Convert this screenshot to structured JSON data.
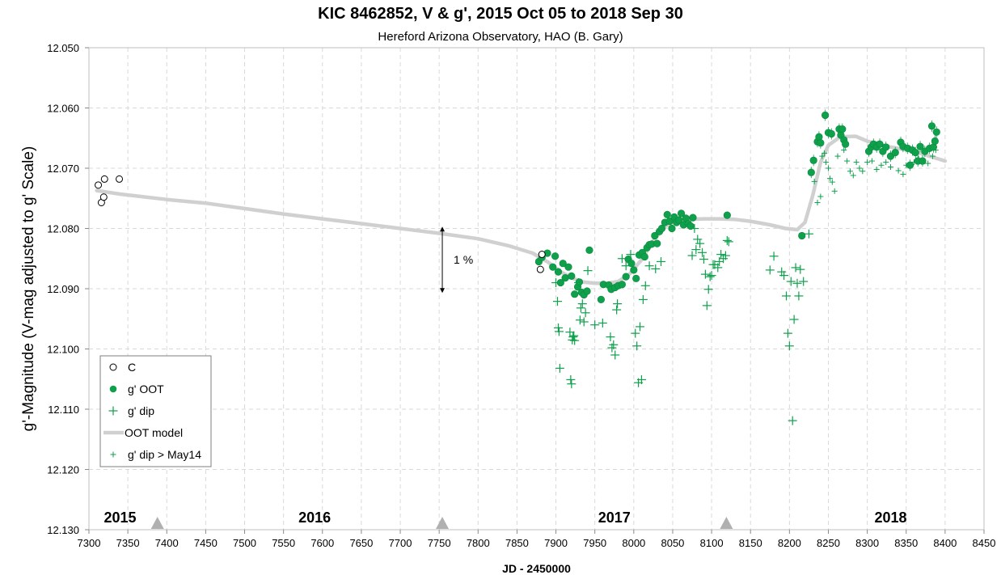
{
  "chart_data": {
    "type": "scatter",
    "title": "KIC 8462852, V & g', 2015 Oct 05 to 2018 Sep 30",
    "subtitle": "Hereford Arizona Observatory, HAO (B. Gary)",
    "xlabel": "JD - 2450000",
    "ylabel": "g'-Magnitude (V-mag adjusted to g' Scale)",
    "xlim": [
      7300,
      8450
    ],
    "ylim": [
      12.05,
      12.13
    ],
    "y_inverted": true,
    "grid": true,
    "x_ticks": [
      "7300",
      "7350",
      "7400",
      "7450",
      "7500",
      "7550",
      "7600",
      "7650",
      "7700",
      "7750",
      "7800",
      "7850",
      "7900",
      "7950",
      "8000",
      "8050",
      "8100",
      "8150",
      "8200",
      "8250",
      "8300",
      "8350",
      "8400",
      "8450"
    ],
    "y_ticks": [
      "12.050",
      "12.060",
      "12.070",
      "12.080",
      "12.090",
      "12.100",
      "12.110",
      "12.120",
      "12.130"
    ],
    "legend_position": "bottom-left",
    "colors": {
      "green": "#0ea04b",
      "model": "#d0d0d0",
      "grid": "#d9d9d9",
      "marker_gray": "#b0b0b0"
    },
    "series": [
      {
        "name": "C",
        "marker": "open-circle",
        "x": [
          7312,
          7316,
          7319,
          7320,
          7339,
          7880,
          7882
        ],
        "y": [
          12.0728,
          12.0757,
          12.0748,
          12.0718,
          12.0718,
          12.0868,
          12.0843
        ]
      },
      {
        "name": "g' OOT",
        "marker": "filled-circle",
        "x": [
          7878,
          7882,
          7889,
          7896,
          7899,
          7903,
          7906,
          7909,
          7912,
          7916,
          7920,
          7924,
          7928,
          7930,
          7933,
          7936,
          7940,
          7943,
          7958,
          7961,
          7968,
          7971,
          7976,
          7980,
          7985,
          7990,
          7993,
          7997,
          8000,
          8003,
          8007,
          8011,
          8014,
          8017,
          8020,
          8023,
          8027,
          8030,
          8033,
          8036,
          8040,
          8043,
          8046,
          8049,
          8052,
          8055,
          8058,
          8061,
          8064,
          8067,
          8070,
          8073,
          8076,
          8120,
          8216,
          8228,
          8231,
          8236,
          8238,
          8240,
          8246,
          8250,
          8254,
          8264,
          8266,
          8268,
          8270,
          8272,
          8302,
          8305,
          8308,
          8312,
          8316,
          8320,
          8324,
          8330,
          8336,
          8343,
          8346,
          8352,
          8355,
          8358,
          8362,
          8365,
          8368,
          8371,
          8374,
          8380,
          8383,
          8385,
          8387,
          8389
        ],
        "y": [
          12.0855,
          12.0848,
          12.0841,
          12.0864,
          12.0846,
          12.0872,
          12.089,
          12.0858,
          12.0882,
          12.0864,
          12.0879,
          12.0909,
          12.0897,
          12.0889,
          12.0906,
          12.091,
          12.0904,
          12.0836,
          12.0918,
          12.0893,
          12.0894,
          12.0901,
          12.0898,
          12.0895,
          12.0893,
          12.088,
          12.0851,
          12.0858,
          12.0869,
          12.0883,
          12.0844,
          12.084,
          12.0847,
          12.0832,
          12.0827,
          12.0826,
          12.0812,
          12.0825,
          12.0805,
          12.08,
          12.079,
          12.0777,
          12.0788,
          12.08,
          12.0781,
          12.079,
          12.0786,
          12.0775,
          12.0794,
          12.0783,
          12.0792,
          12.0796,
          12.0782,
          12.0778,
          12.0812,
          12.0707,
          12.0687,
          12.0656,
          12.0648,
          12.0658,
          12.0612,
          12.0641,
          12.0643,
          12.0635,
          12.0645,
          12.0635,
          12.0653,
          12.066,
          12.0672,
          12.0665,
          12.066,
          12.0665,
          12.066,
          12.0672,
          12.0665,
          12.068,
          12.0674,
          12.0657,
          12.0664,
          12.0667,
          12.0695,
          12.067,
          12.0674,
          12.0688,
          12.0664,
          12.0688,
          12.0672,
          12.0667,
          12.063,
          12.0665,
          12.0655,
          12.064
        ]
      },
      {
        "name": "g' dip",
        "marker": "plus",
        "x": [
          7900,
          7902,
          7903,
          7904,
          7905,
          7918,
          7919,
          7920,
          7921,
          7922,
          7923,
          7924,
          7929,
          7931,
          7932,
          7934,
          7936,
          7938,
          7941,
          7950,
          7960,
          7970,
          7972,
          7974,
          7976,
          7978,
          7979,
          7985,
          7990,
          7996,
          8002,
          8004,
          8006,
          8008,
          8010,
          8012,
          8015,
          8020,
          8028,
          8035,
          8075,
          8078,
          8080,
          8082,
          8085,
          8088,
          8090,
          8092,
          8094,
          8096,
          8098,
          8100,
          8102,
          8104,
          8108,
          8110,
          8112,
          8115,
          8118,
          8120,
          8122,
          8175,
          8180,
          8190,
          8193,
          8196,
          8198,
          8200,
          8202,
          8204,
          8206,
          8208,
          8210,
          8212,
          8214,
          8218,
          8225
        ],
        "y": [
          12.089,
          12.0921,
          12.0965,
          12.0971,
          12.1032,
          12.0972,
          12.1051,
          12.1058,
          12.0985,
          12.098,
          12.0978,
          12.0986,
          12.089,
          12.0952,
          12.0932,
          12.0925,
          12.0955,
          12.094,
          12.087,
          12.096,
          12.0957,
          12.098,
          12.0998,
          12.0993,
          12.101,
          12.0935,
          12.0925,
          12.085,
          12.0862,
          12.0843,
          12.0974,
          12.0995,
          12.1056,
          12.0963,
          12.1051,
          12.0918,
          12.0895,
          12.0862,
          12.0867,
          12.0855,
          12.0845,
          12.08,
          12.0835,
          12.0818,
          12.0825,
          12.084,
          12.0851,
          12.0876,
          12.0928,
          12.0901,
          12.088,
          12.0878,
          12.086,
          12.086,
          12.0865,
          12.0855,
          12.0843,
          12.085,
          12.0845,
          12.082,
          12.0822,
          12.0869,
          12.0846,
          12.0872,
          12.0878,
          12.0912,
          12.0974,
          12.0995,
          12.0888,
          12.1119,
          12.0951,
          12.0865,
          12.0891,
          12.0912,
          12.0868,
          12.0888,
          12.0809
        ]
      },
      {
        "name": "OOT model",
        "marker": "line",
        "x": [
          7310,
          7340,
          7400,
          7450,
          7500,
          7550,
          7600,
          7650,
          7700,
          7750,
          7800,
          7840,
          7870,
          7890,
          7905,
          7920,
          7935,
          7950,
          7965,
          7980,
          7995,
          8010,
          8025,
          8040,
          8055,
          8070,
          8090,
          8110,
          8130,
          8150,
          8175,
          8195,
          8210,
          8220,
          8230,
          8240,
          8250,
          8265,
          8285,
          8300,
          8330,
          8360,
          8380,
          8400
        ],
        "y": [
          12.0737,
          12.0743,
          12.0752,
          12.0758,
          12.0767,
          12.0776,
          12.0784,
          12.0792,
          12.08,
          12.0808,
          12.0817,
          12.0829,
          12.0841,
          12.0856,
          12.0871,
          12.0882,
          12.0889,
          12.0891,
          12.0891,
          12.0888,
          12.0875,
          12.0852,
          12.082,
          12.0797,
          12.0787,
          12.0785,
          12.0784,
          12.0784,
          12.0785,
          12.0788,
          12.0794,
          12.08,
          12.0802,
          12.079,
          12.0745,
          12.069,
          12.0662,
          12.0648,
          12.0647,
          12.0655,
          12.0665,
          12.0672,
          12.068,
          12.0688
        ]
      },
      {
        "name": "g' dip > May14",
        "marker": "small-plus",
        "x": [
          8232,
          8236,
          8240,
          8242,
          8245,
          8247,
          8250,
          8252,
          8255,
          8258,
          8262,
          8270,
          8274,
          8278,
          8282,
          8286,
          8290,
          8294,
          8300,
          8306,
          8312,
          8318,
          8324,
          8330,
          8340,
          8346,
          8350,
          8360,
          8366,
          8372,
          8378,
          8384,
          8388
        ],
        "y": [
          12.0722,
          12.0757,
          12.0747,
          12.068,
          12.0675,
          12.069,
          12.07,
          12.0717,
          12.0723,
          12.0738,
          12.068,
          12.067,
          12.0688,
          12.0705,
          12.0712,
          12.069,
          12.07,
          12.0705,
          12.069,
          12.0688,
          12.0702,
          12.0695,
          12.069,
          12.0698,
          12.0704,
          12.071,
          12.0695,
          12.069,
          12.0684,
          12.0688,
          12.0692,
          12.068,
          12.067
        ]
      }
    ],
    "annotations": [
      {
        "text": "1 %",
        "x": 7754,
        "y_top": 12.0797,
        "y_bottom": 12.0907
      },
      {
        "text": "2015",
        "x": 7340,
        "y": 12.128
      },
      {
        "text": "2016",
        "x": 7590,
        "y": 12.128
      },
      {
        "text": "2017",
        "x": 7975,
        "y": 12.128
      },
      {
        "text": "2018",
        "x": 8330,
        "y": 12.128
      }
    ],
    "year_markers_x": [
      7388,
      7754,
      8119
    ]
  }
}
